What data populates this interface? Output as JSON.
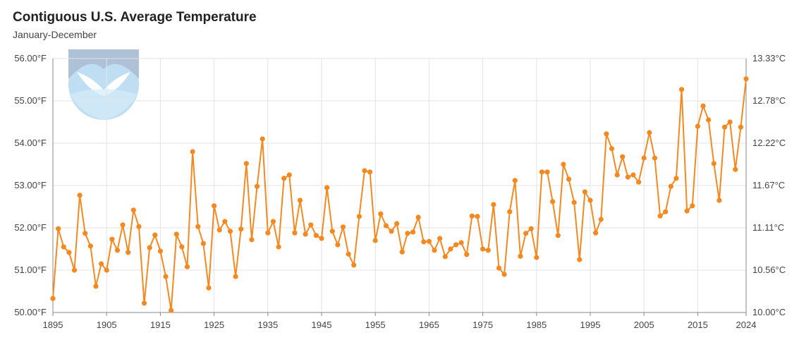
{
  "chart_data": {
    "type": "line",
    "title": "Contiguous U.S. Average Temperature",
    "subtitle": "January-December",
    "xlabel": "",
    "ylabel": "",
    "x_ticks": [
      "1895",
      "1905",
      "1915",
      "1925",
      "1935",
      "1945",
      "1955",
      "1965",
      "1975",
      "1985",
      "1995",
      "2005",
      "2015",
      "2024"
    ],
    "y_ticks_left": [
      "50.00°F",
      "51.00°F",
      "52.00°F",
      "53.00°F",
      "54.00°F",
      "55.00°F",
      "56.00°F"
    ],
    "y_ticks_right": [
      "10.00°C",
      "10.56°C",
      "11.11°C",
      "11.67°C",
      "12.22°C",
      "12.78°C",
      "13.33°C"
    ],
    "xlim": [
      1895,
      2024
    ],
    "ylim": [
      50,
      56
    ],
    "grid": true,
    "legend": "none",
    "logo": "noaa-logo",
    "colors": {
      "line": "#f5891f",
      "grid": "#e3e3e3",
      "axis": "#888888"
    },
    "series": [
      {
        "x": [
          1895,
          1896,
          1897,
          1898,
          1899,
          1900,
          1901,
          1902,
          1903,
          1904,
          1905,
          1906,
          1907,
          1908,
          1909,
          1910,
          1911,
          1912,
          1913,
          1914,
          1915,
          1916,
          1917,
          1918,
          1919,
          1920,
          1921,
          1922,
          1923,
          1924,
          1925,
          1926,
          1927,
          1928,
          1929,
          1930,
          1931,
          1932,
          1933,
          1934,
          1935,
          1936,
          1937,
          1938,
          1939,
          1940,
          1941,
          1942,
          1943,
          1944,
          1945,
          1946,
          1947,
          1948,
          1949,
          1950,
          1951,
          1952,
          1953,
          1954,
          1955,
          1956,
          1957,
          1958,
          1959,
          1960,
          1961,
          1962,
          1963,
          1964,
          1965,
          1966,
          1967,
          1968,
          1969,
          1970,
          1971,
          1972,
          1973,
          1974,
          1975,
          1976,
          1977,
          1978,
          1979,
          1980,
          1981,
          1982,
          1983,
          1984,
          1985,
          1986,
          1987,
          1988,
          1989,
          1990,
          1991,
          1992,
          1993,
          1994,
          1995,
          1996,
          1997,
          1998,
          1999,
          2000,
          2001,
          2002,
          2003,
          2004,
          2005,
          2006,
          2007,
          2008,
          2009,
          2010,
          2011,
          2012,
          2013,
          2014,
          2015,
          2016,
          2017,
          2018,
          2019,
          2020,
          2021,
          2022,
          2023,
          2024
        ],
        "values": [
          50.33,
          51.98,
          51.55,
          51.42,
          51.0,
          52.77,
          51.87,
          51.57,
          50.62,
          51.15,
          51.0,
          51.73,
          51.47,
          52.07,
          51.42,
          52.42,
          52.03,
          50.22,
          51.53,
          51.83,
          51.45,
          50.85,
          50.05,
          51.85,
          51.55,
          51.08,
          53.8,
          52.03,
          51.63,
          50.58,
          52.52,
          51.95,
          52.15,
          51.92,
          50.85,
          51.97,
          53.52,
          51.72,
          52.98,
          54.1,
          51.88,
          52.15,
          51.55,
          53.17,
          53.25,
          51.88,
          52.65,
          51.85,
          52.07,
          51.82,
          51.75,
          52.95,
          51.92,
          51.6,
          52.02,
          51.38,
          51.12,
          52.27,
          53.35,
          53.32,
          51.7,
          52.33,
          52.05,
          51.92,
          52.1,
          51.43,
          51.87,
          51.9,
          52.25,
          51.67,
          51.68,
          51.47,
          51.75,
          51.32,
          51.5,
          51.6,
          51.65,
          51.37,
          52.28,
          52.27,
          51.5,
          51.47,
          52.55,
          51.05,
          50.9,
          52.38,
          53.12,
          51.33,
          51.87,
          51.98,
          51.3,
          53.32,
          53.32,
          52.62,
          51.82,
          53.5,
          53.15,
          52.6,
          51.25,
          52.85,
          52.65,
          51.88,
          52.2,
          54.22,
          53.87,
          53.25,
          53.68,
          53.2,
          53.25,
          53.08,
          53.65,
          54.25,
          53.65,
          52.28,
          52.38,
          52.98,
          53.17,
          55.27,
          52.4,
          52.52,
          54.4,
          54.88,
          54.55,
          53.52,
          52.65,
          54.38,
          54.5,
          53.38,
          54.38,
          55.52
        ]
      }
    ]
  }
}
